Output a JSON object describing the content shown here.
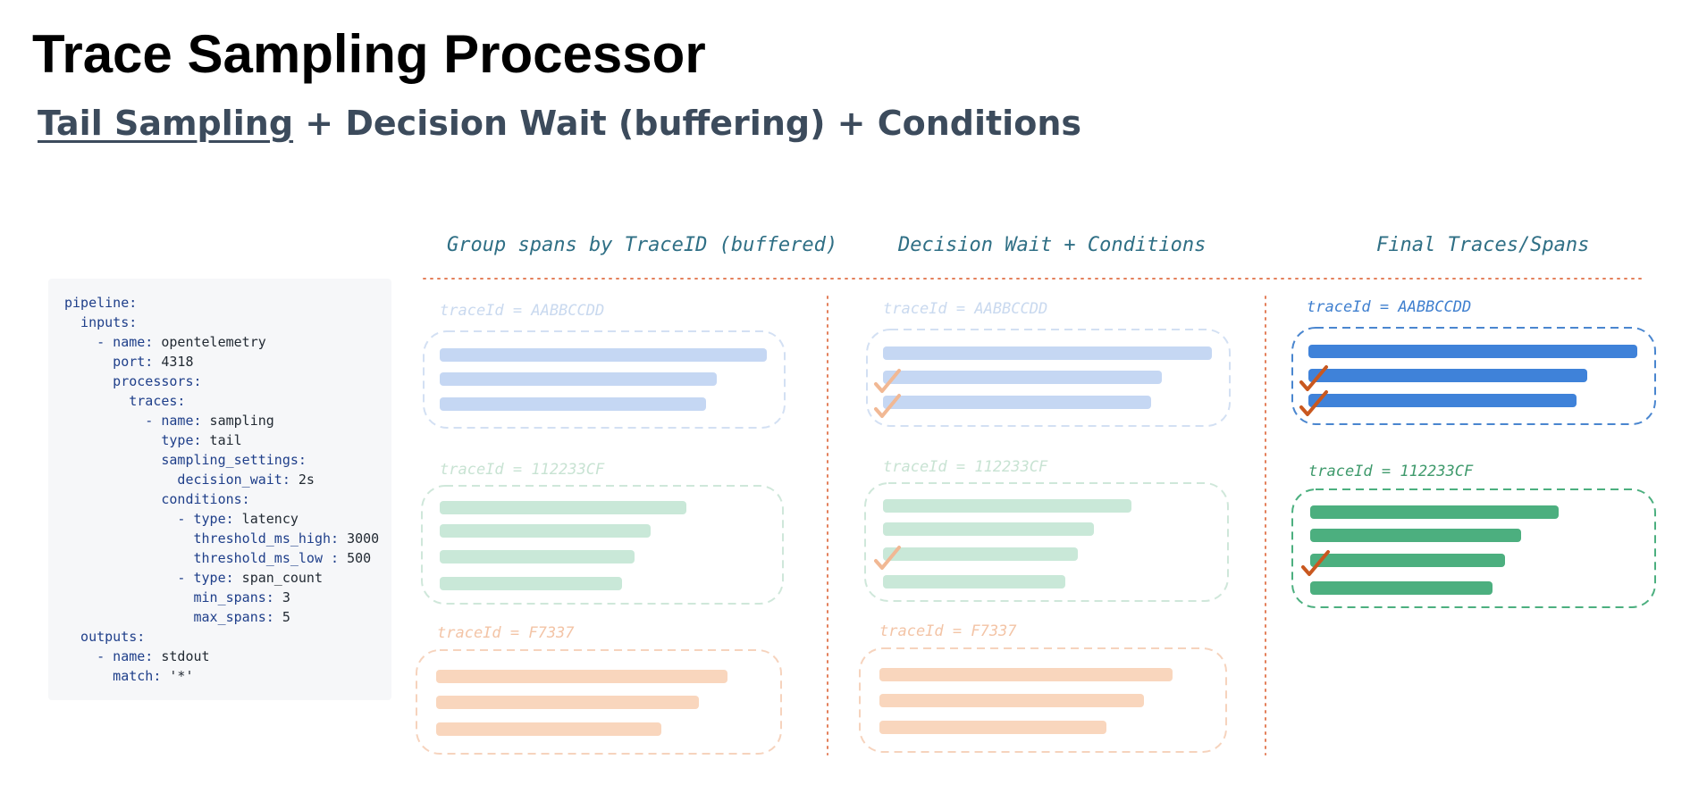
{
  "title": "Trace Sampling Processor",
  "subtitle": {
    "underlined": "Tail Sampling",
    "rest": " + Decision Wait (buffering) + Conditions"
  },
  "code_lines": [
    {
      "key": "pipeline:",
      "val": ""
    },
    {
      "key": "  inputs:",
      "val": ""
    },
    {
      "key": "    - name:",
      "val": " opentelemetry"
    },
    {
      "key": "      port:",
      "val": " 4318"
    },
    {
      "key": "      processors:",
      "val": ""
    },
    {
      "key": "        traces:",
      "val": ""
    },
    {
      "key": "          - name:",
      "val": " sampling"
    },
    {
      "key": "            type:",
      "val": " tail"
    },
    {
      "key": "            sampling_settings:",
      "val": ""
    },
    {
      "key": "              decision_wait:",
      "val": " 2s"
    },
    {
      "key": "            conditions:",
      "val": ""
    },
    {
      "key": "              - type:",
      "val": " latency"
    },
    {
      "key": "                threshold_ms_high:",
      "val": " 3000"
    },
    {
      "key": "                threshold_ms_low :",
      "val": " 500"
    },
    {
      "key": "              - type:",
      "val": " span_count"
    },
    {
      "key": "                min_spans:",
      "val": " 3"
    },
    {
      "key": "                max_spans:",
      "val": " 5"
    },
    {
      "key": "  outputs:",
      "val": ""
    },
    {
      "key": "    - name:",
      "val": " stdout"
    },
    {
      "key": "      match:",
      "val": " '*'"
    }
  ],
  "columns": [
    {
      "heading": "Group spans by TraceID (buffered)"
    },
    {
      "heading": "Decision Wait + Conditions"
    },
    {
      "heading": "Final Traces/Spans"
    }
  ],
  "trace_labels": {
    "blue": "traceId = AABBCCDD",
    "green": "traceId = 112233CF",
    "orange": "traceId = F7337"
  },
  "colors": {
    "blue_light": "#c5d7f3",
    "blue_strong": "#3f82d9",
    "green_light": "#c9e8d8",
    "green_strong": "#4caf7f",
    "orange_light": "#f9d6bd",
    "check": "#c9581f",
    "separator": "#e4805b"
  }
}
